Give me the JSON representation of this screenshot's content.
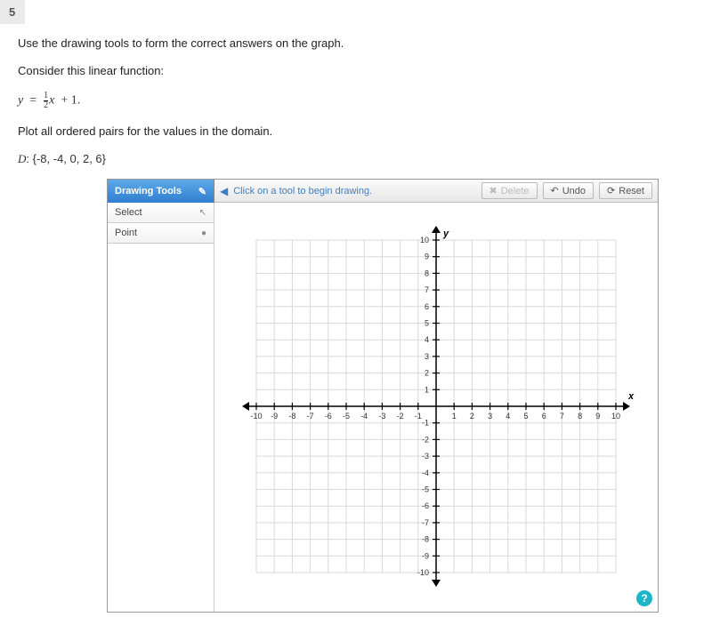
{
  "question_number": "5",
  "instruction": "Use the drawing tools to form the correct answers on the graph.",
  "prompt_intro": "Consider this linear function:",
  "equation": {
    "lhs": "y",
    "eq": "=",
    "frac_num": "1",
    "frac_den": "2",
    "var": "x",
    "const": "+ 1."
  },
  "plot_instruction": "Plot all ordered pairs for the values in the domain.",
  "domain": {
    "label_prefix": "D",
    "label_rest": ": {-8, -4, 0, 2, 6}"
  },
  "toolbar": {
    "tools_header": "Drawing Tools",
    "hint": "Click on a tool to begin drawing.",
    "delete": "Delete",
    "undo": "Undo",
    "reset": "Reset"
  },
  "sidebar": {
    "items": [
      {
        "label": "Select",
        "icon": "↖"
      },
      {
        "label": "Point",
        "icon": "•"
      }
    ]
  },
  "chart": {
    "type": "coordinate-grid",
    "xmin": -10,
    "xmax": 10,
    "ymin": -10,
    "ymax": 10,
    "xstep": 1,
    "ystep": 1,
    "grid_color": "#d9d9d9",
    "axis_color": "#000000",
    "background_color": "#ffffff",
    "label_fontsize": 9,
    "x_label": "x",
    "y_label": "y",
    "show_arrows": true
  },
  "help_icon": "?",
  "icons": {
    "wrench": "✎",
    "arrow_left": "◀",
    "close": "✖",
    "undo_arrow": "↶",
    "reset_arrow": "⟳",
    "point_dot": "●",
    "select_cursor": "↖"
  }
}
